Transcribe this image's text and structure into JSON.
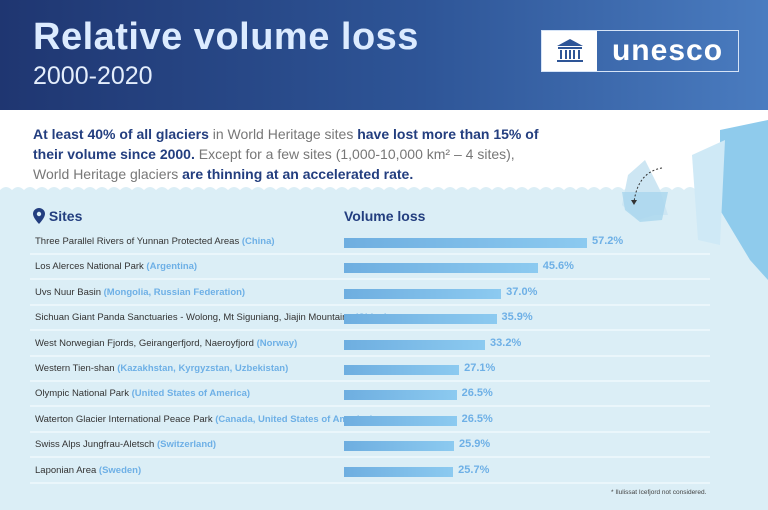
{
  "header": {
    "title": "Relative volume loss",
    "subtitle": "2000-2020",
    "logo": "unesco"
  },
  "intro": [
    {
      "t": "At least 40% of all glaciers",
      "b": true
    },
    {
      "t": " in World Heritage sites ",
      "b": false
    },
    {
      "t": "have lost more than 15% of their volume since 2000.",
      "b": true
    },
    {
      "t": " Except for a few sites (1,000-10,000 km² – 4 sites), World Heritage glaciers ",
      "b": false
    },
    {
      "t": "are thinning at an accelerated rate.",
      "b": true
    }
  ],
  "colors": {
    "header": "#1f3671",
    "accent": "#6eb0e6",
    "text": "#233e7f",
    "sea": "#dbeef6"
  },
  "chart_data": {
    "type": "bar",
    "orientation": "horizontal",
    "column_headers": {
      "sites": "Sites",
      "value": "Volume loss"
    },
    "categories": [
      "Three Parallel Rivers of Yunnan Protected Areas",
      "Los Alerces National Park",
      "Uvs Nuur Basin",
      "Sichuan Giant Panda Sanctuaries - Wolong, Mt Siguniang, Jiajin Mountains",
      "West Norwegian Fjords, Geirangerfjord, Naeroyfjord",
      "Western Tien-shan",
      "Olympic National Park",
      "Waterton Glacier International Peace Park",
      "Swiss Alps Jungfrau-Aletsch",
      "Laponian Area"
    ],
    "countries": [
      "(China)",
      "(Argentina)",
      "(Mongolia, Russian Federation)",
      "(China)",
      "(Norway)",
      "(Kazakhstan, Kyrgyzstan, Uzbekistan)",
      "(United States of America)",
      "(Canada, United States of America)",
      "(Switzerland)",
      "(Sweden)"
    ],
    "values": [
      57.2,
      45.6,
      37.0,
      35.9,
      33.2,
      27.1,
      26.5,
      26.5,
      25.9,
      25.7
    ],
    "labels": [
      "57.2%",
      "45.6%",
      "37.0%",
      "35.9%",
      "33.2%",
      "27.1%",
      "26.5%",
      "26.5%",
      "25.9%",
      "25.7%"
    ],
    "unit": "%"
  },
  "footnote": "* Ilulissat Icefjord not considered."
}
